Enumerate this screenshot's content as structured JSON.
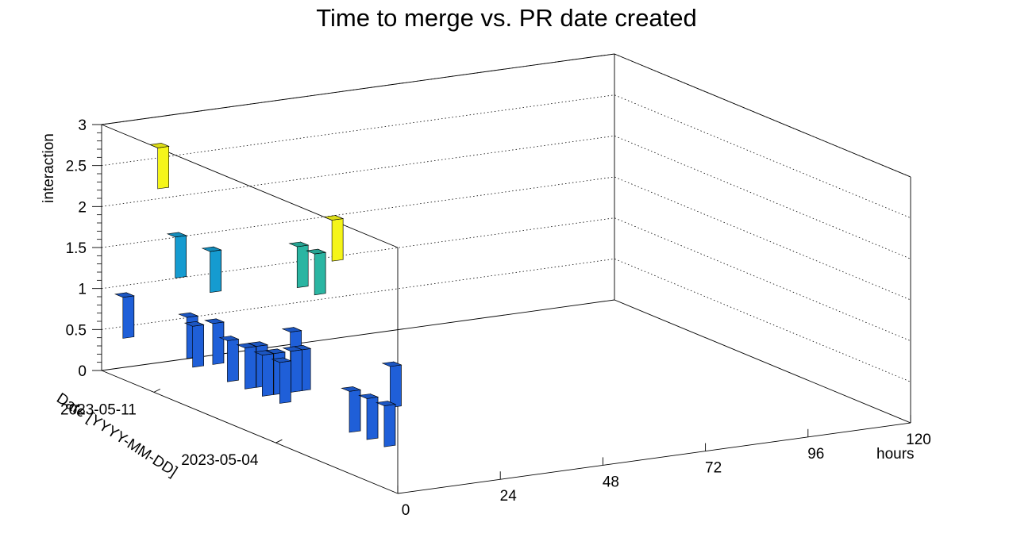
{
  "chart_data": {
    "type": "lego3d",
    "title": "Time to merge vs. PR date created",
    "xlabel": "hours",
    "ylabel": "Date [YYYY-MM-DD]",
    "zlabel": "interaction",
    "x_ticks": [
      "0",
      "24",
      "48",
      "72",
      "96",
      "120"
    ],
    "y_ticks": [
      "2023-05-11",
      "2023-05-04"
    ],
    "z_ticks": [
      "0",
      "0.5",
      "1",
      "1.5",
      "2",
      "2.5",
      "3"
    ],
    "xlim": [
      0,
      120
    ],
    "zlim": [
      0,
      3
    ],
    "grid": true,
    "palette": {
      "1": "#1f5fd8",
      "2": "#159bd0",
      "2.5": "#2ab5a2",
      "3": "#f5f51a"
    },
    "bars": [
      {
        "x": 0.5,
        "date": "2023-05-13",
        "interaction": 1
      },
      {
        "x": 0.5,
        "date": "2023-05-11",
        "interaction": 3
      },
      {
        "x": 0.5,
        "date": "2023-05-10",
        "interaction": 2
      },
      {
        "x": 0.5,
        "date": "2023-05-09",
        "interaction": 1
      },
      {
        "x": 0.5,
        "date": "2023-05-08",
        "interaction": 2
      },
      {
        "x": 0.5,
        "date": "2023-05-07",
        "interaction": 1
      },
      {
        "x": 0.5,
        "date": "2023-05-06",
        "interaction": 1
      },
      {
        "x": 0.5,
        "date": "2023-05-05",
        "interaction": 1
      },
      {
        "x": 0.5,
        "date": "2023-05-04",
        "interaction": 1
      },
      {
        "x": 0.5,
        "date": "2023-05-03",
        "interaction": 2.5
      },
      {
        "x": 0.5,
        "date": "2023-05-02",
        "interaction": 2.5
      },
      {
        "x": 0.5,
        "date": "2023-05-01",
        "interaction": 3
      },
      {
        "x": 0.5,
        "date": "2023-04-30",
        "interaction": 1
      },
      {
        "x": 0.5,
        "date": "2023-04-29",
        "interaction": 1
      },
      {
        "x": 0.5,
        "date": "2023-04-28",
        "interaction": 1
      },
      {
        "x": 4,
        "date": "2023-05-10",
        "interaction": 1
      },
      {
        "x": 4,
        "date": "2023-05-06",
        "interaction": 1
      },
      {
        "x": 4,
        "date": "2023-05-05",
        "interaction": 1
      },
      {
        "x": 6,
        "date": "2023-05-09",
        "interaction": 1
      },
      {
        "x": 8,
        "date": "2023-05-05",
        "interaction": 1
      },
      {
        "x": 10,
        "date": "2023-05-05",
        "interaction": 1
      },
      {
        "x": 16,
        "date": "2023-05-07",
        "interaction": 1
      },
      {
        "x": 19,
        "date": "2023-05-02",
        "interaction": 1
      }
    ]
  }
}
